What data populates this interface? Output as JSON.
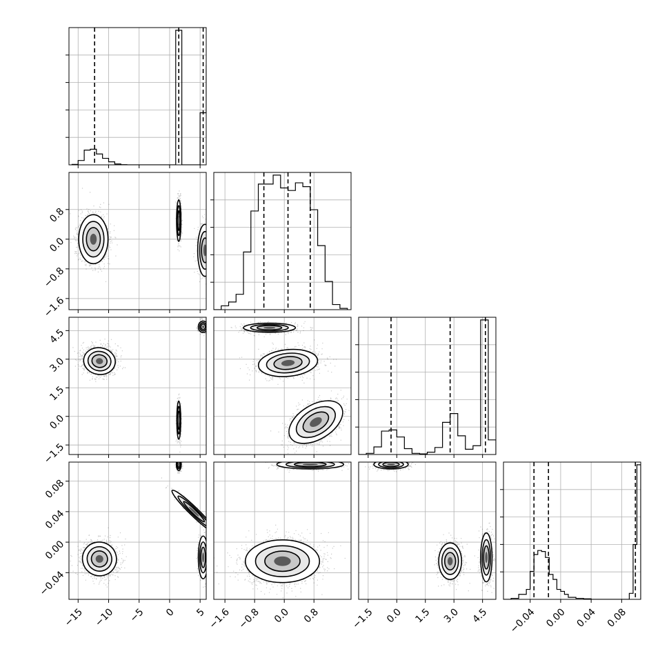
{
  "chart_data": {
    "type": "corner",
    "n_params": 4,
    "grid": true,
    "params": [
      {
        "range": [
          -16.5,
          6
        ],
        "ticks": [
          -15,
          -10,
          -5,
          0,
          5
        ],
        "tick_labels": [
          "−15",
          "−10",
          "−5",
          "0",
          "5"
        ],
        "quantiles": [
          -12.3,
          1.5,
          5.5
        ],
        "hist": {
          "edges": [
            -16,
            -15,
            -14,
            -13,
            -12,
            -11,
            -10,
            -9,
            -8,
            -7,
            -6,
            -5,
            -4,
            -3,
            -2,
            -1,
            0,
            1,
            2,
            3,
            4,
            5,
            6
          ],
          "counts": [
            0.01,
            0.1,
            0.34,
            0.36,
            0.25,
            0.15,
            0.07,
            0.02,
            0.005,
            0,
            0,
            0,
            0,
            0,
            0,
            0,
            0,
            3.1,
            0,
            0,
            0,
            1.2,
            2.3
          ]
        }
      },
      {
        "range": [
          -1.9,
          1.8
        ],
        "ticks": [
          -1.6,
          -0.8,
          0.0,
          0.8
        ],
        "tick_labels": [
          "−1.6",
          "−0.8",
          "0.0",
          "0.8"
        ],
        "quantiles": [
          -0.55,
          0.1,
          0.7
        ],
        "hist": {
          "edges": [
            -1.9,
            -1.7,
            -1.5,
            -1.3,
            -1.1,
            -0.9,
            -0.7,
            -0.5,
            -0.3,
            -0.1,
            0.1,
            0.3,
            0.5,
            0.7,
            0.9,
            1.1,
            1.3,
            1.5,
            1.7
          ],
          "counts": [
            0.0,
            0.03,
            0.06,
            0.12,
            0.45,
            0.77,
            0.98,
            0.98,
            1.05,
            0.95,
            0.93,
            0.99,
            0.96,
            0.78,
            0.5,
            0.22,
            0.04,
            0.01
          ]
        }
      },
      {
        "range": [
          -2.0,
          5.2
        ],
        "ticks": [
          -1.5,
          0.0,
          1.5,
          3.0,
          4.5
        ],
        "tick_labels": [
          "−1.5",
          "0.0",
          "1.5",
          "3.0",
          "4.5"
        ],
        "quantiles": [
          -0.3,
          2.8,
          4.65
        ],
        "hist": {
          "edges": [
            -2.0,
            -1.6,
            -1.2,
            -0.8,
            -0.4,
            0.0,
            0.4,
            0.8,
            1.2,
            1.6,
            2.0,
            2.4,
            2.8,
            3.2,
            3.6,
            4.0,
            4.4,
            4.8,
            5.2
          ],
          "counts": [
            0.0,
            0.02,
            0.13,
            0.4,
            0.42,
            0.3,
            0.1,
            0.02,
            0.01,
            0.04,
            0.12,
            0.55,
            0.7,
            0.32,
            0.09,
            0.15,
            2.3,
            0.25
          ]
        }
      },
      {
        "range": [
          -0.075,
          0.105
        ],
        "ticks": [
          -0.04,
          0.0,
          0.04,
          0.08
        ],
        "tick_labels": [
          "−0.04",
          "0.00",
          "0.04",
          "0.08"
        ],
        "quantiles": [
          -0.035,
          -0.016,
          0.098
        ],
        "hist": {
          "edges": [
            -0.075,
            -0.065,
            -0.055,
            -0.045,
            -0.04,
            -0.035,
            -0.03,
            -0.025,
            -0.02,
            -0.015,
            -0.01,
            -0.005,
            0.0,
            0.005,
            0.01,
            0.02,
            0.03,
            0.04,
            0.05,
            0.06,
            0.07,
            0.08,
            0.09,
            0.095,
            0.1,
            0.105
          ],
          "counts": [
            0,
            0.01,
            0.05,
            0.1,
            0.28,
            0.45,
            0.49,
            0.48,
            0.42,
            0.25,
            0.2,
            0.1,
            0.08,
            0.05,
            0.02,
            0.01,
            0.005,
            0,
            0,
            0,
            0,
            0,
            0.06,
            0.55,
            1.35
          ]
        }
      }
    ],
    "density_blobs": {
      "1_0": [
        {
          "x": -12.5,
          "y": 0.0,
          "sx": 1.2,
          "sy": 0.33,
          "rot": 0,
          "n": 1500
        },
        {
          "x": 1.5,
          "y": 0.5,
          "sx": 0.18,
          "sy": 0.28,
          "rot": 0,
          "n": 700
        },
        {
          "x": 5.8,
          "y": -0.3,
          "sx": 0.6,
          "sy": 0.35,
          "rot": 0,
          "n": 800
        }
      ],
      "2_0": [
        {
          "x": -11.5,
          "y": 2.9,
          "sx": 1.3,
          "sy": 0.35,
          "rot": 0.15,
          "n": 1500
        },
        {
          "x": 1.5,
          "y": -0.2,
          "sx": 0.16,
          "sy": 0.5,
          "rot": 0,
          "n": 600
        },
        {
          "x": 5.5,
          "y": 4.7,
          "sx": 0.4,
          "sy": 0.15,
          "rot": 0,
          "n": 500
        }
      ],
      "2_1": [
        {
          "x": -0.4,
          "y": 4.65,
          "sx": 0.35,
          "sy": 0.12,
          "rot": 0,
          "n": 1000
        },
        {
          "x": 0.1,
          "y": 2.8,
          "sx": 0.4,
          "sy": 0.35,
          "rot": -0.1,
          "n": 1300
        },
        {
          "x": 0.85,
          "y": -0.3,
          "sx": 0.4,
          "sy": 0.45,
          "rot": -0.55,
          "n": 1300
        }
      ],
      "3_0": [
        {
          "x": -11.5,
          "y": -0.022,
          "sx": 1.4,
          "sy": 0.011,
          "rot": 0.55,
          "n": 1500
        },
        {
          "x": 1.5,
          "y": 0.102,
          "sx": 0.2,
          "sy": 0.004,
          "rot": 0,
          "n": 500
        },
        {
          "x": 5.5,
          "y": -0.02,
          "sx": 0.4,
          "sy": 0.014,
          "rot": 0,
          "n": 500
        },
        {
          "x": 4.0,
          "y": 0.04,
          "sx": 0.35,
          "sy": 0.02,
          "rot": -0.8,
          "n": 250
        }
      ],
      "3_1": [
        {
          "x": -0.05,
          "y": -0.025,
          "sx": 0.5,
          "sy": 0.014,
          "rot": 0,
          "n": 2200
        },
        {
          "x": 0.7,
          "y": 0.102,
          "sx": 0.45,
          "sy": 0.003,
          "rot": 0,
          "n": 700
        }
      ],
      "3_2": [
        {
          "x": -0.3,
          "y": 0.102,
          "sx": 0.45,
          "sy": 0.003,
          "rot": 0,
          "n": 700
        },
        {
          "x": 2.8,
          "y": -0.025,
          "sx": 0.3,
          "sy": 0.012,
          "rot": 0,
          "n": 1200
        },
        {
          "x": 4.7,
          "y": -0.02,
          "sx": 0.15,
          "sy": 0.016,
          "rot": 0,
          "n": 900
        }
      ]
    }
  }
}
